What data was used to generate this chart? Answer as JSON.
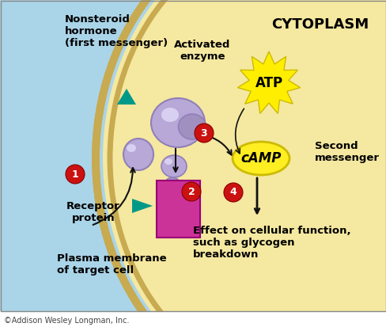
{
  "bg_light_blue": "#aad4e8",
  "bg_tan": "#f5e8a0",
  "membrane_color": "#c8aa50",
  "receptor_color": "#cc3399",
  "purple_light": "#b8a8d8",
  "purple_mid": "#a090c0",
  "purple_dark": "#9080b8",
  "atp_color": "#ffee00",
  "camp_color": "#ffee22",
  "step_color": "#cc1111",
  "arrow_color": "#111111",
  "teal_color": "#009988",
  "title": "CYTOPLASM",
  "label_nonsteroid": "Nonsteroid\nhormone\n(first messenger)",
  "label_activated": "Activated\nenzyme",
  "label_atp": "ATP",
  "label_camp": "cAMP",
  "label_second": "Second\nmessenger",
  "label_receptor": "Receptor\nprotein",
  "label_plasma": "Plasma membrane\nof target cell",
  "label_effect": "Effect on cellular function,\nsuch as glycogen\nbreakdown",
  "label_copyright": "©Addison Wesley Longman, Inc."
}
